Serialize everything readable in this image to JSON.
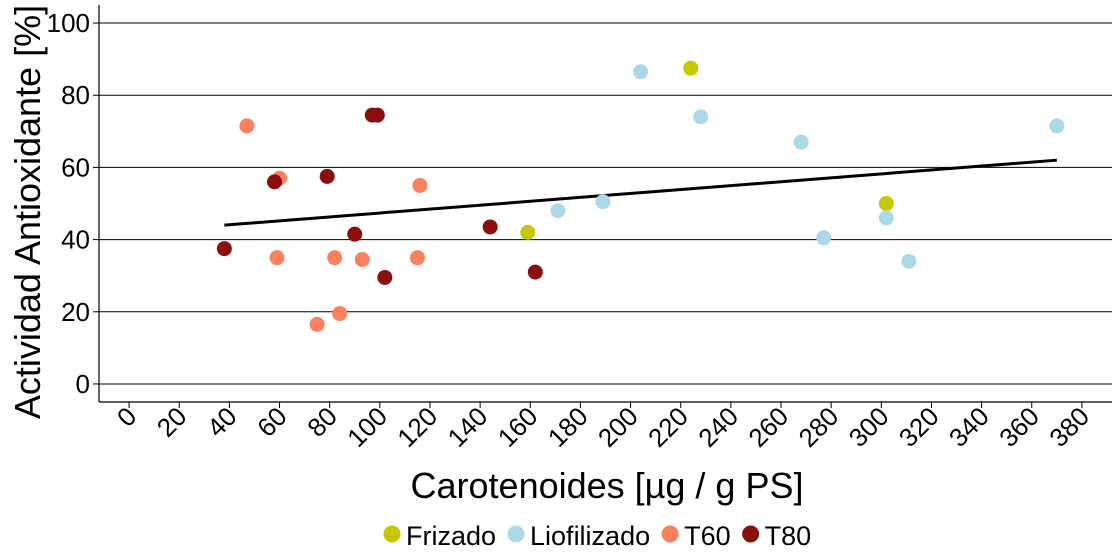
{
  "chart_data": {
    "type": "scatter",
    "xlabel": "Carotenoides [µg / g PS]",
    "ylabel": "Actividad Antioxidante [%]",
    "xlim": [
      -12,
      392
    ],
    "ylim": [
      -5,
      105
    ],
    "xticks": [
      0,
      20,
      40,
      60,
      80,
      100,
      120,
      140,
      160,
      180,
      200,
      220,
      240,
      260,
      280,
      300,
      320,
      340,
      360,
      380
    ],
    "yticks": [
      0,
      20,
      40,
      60,
      80,
      100
    ],
    "grid": "horizontal major lines",
    "legend_position": "bottom",
    "series": [
      {
        "name": "Frizado",
        "color": "#c8c800",
        "points": [
          [
            159,
            42
          ],
          [
            224,
            87.5
          ],
          [
            302,
            50
          ]
        ]
      },
      {
        "name": "Liofilizado",
        "color": "#add8e6",
        "points": [
          [
            171,
            48
          ],
          [
            189,
            50.5
          ],
          [
            204,
            86.5
          ],
          [
            228,
            74
          ],
          [
            268,
            67
          ],
          [
            277,
            40.5
          ],
          [
            302,
            46
          ],
          [
            311,
            34
          ],
          [
            370,
            71.5
          ]
        ]
      },
      {
        "name": "T60",
        "color": "#fa8060",
        "points": [
          [
            47,
            71.5
          ],
          [
            59,
            35
          ],
          [
            60,
            57
          ],
          [
            75,
            16.5
          ],
          [
            82,
            35
          ],
          [
            84,
            19.5
          ],
          [
            93,
            34.5
          ],
          [
            115,
            35
          ],
          [
            116,
            55
          ]
        ]
      },
      {
        "name": "T80",
        "color": "#8b0f0f",
        "points": [
          [
            38,
            37.5
          ],
          [
            58,
            56
          ],
          [
            79,
            57.5
          ],
          [
            90,
            41.5
          ],
          [
            97,
            74.5
          ],
          [
            99,
            74.5
          ],
          [
            102,
            29.5
          ],
          [
            144,
            43.5
          ],
          [
            162,
            31
          ]
        ]
      }
    ],
    "trendline": {
      "color": "#000000",
      "points": [
        [
          38,
          44
        ],
        [
          370,
          62
        ]
      ]
    }
  }
}
